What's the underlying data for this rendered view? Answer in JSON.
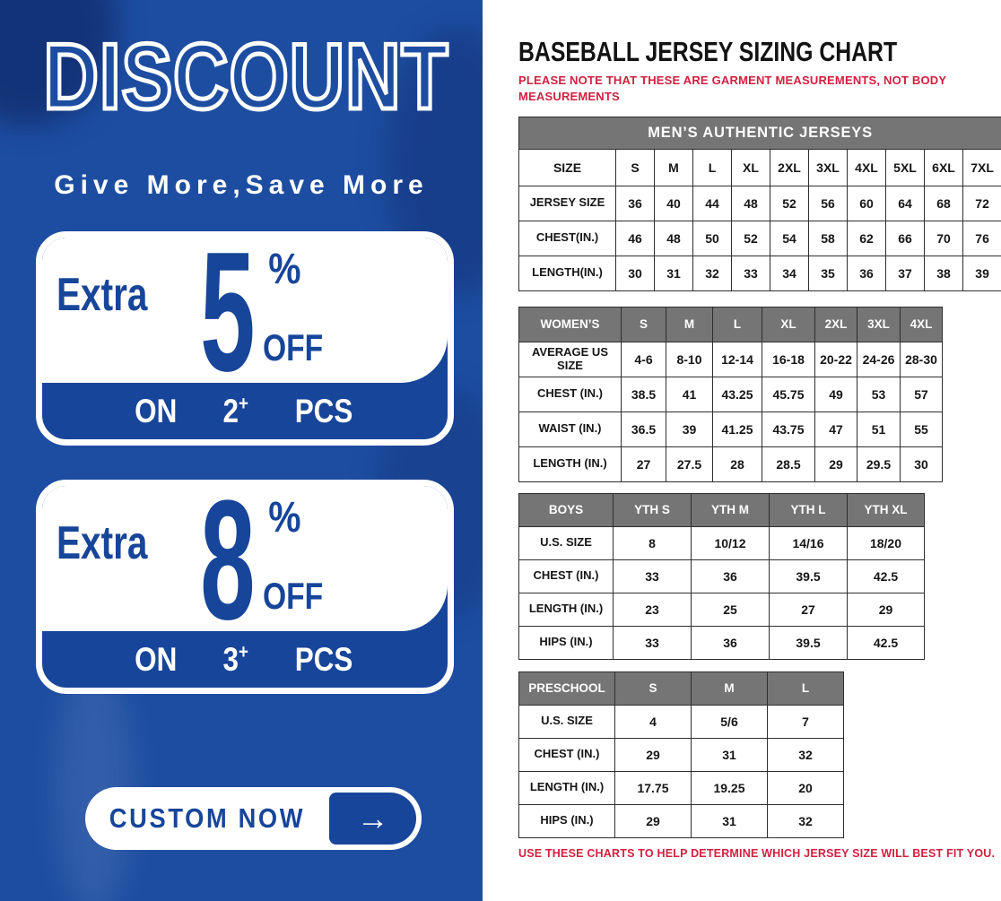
{
  "left_panel": {
    "title": "DISCOUNT",
    "subtitle": "Give More,Save More",
    "offers": [
      {
        "extra": "Extra",
        "amount": "5",
        "percent": "%",
        "off": "OFF",
        "on": "ON",
        "qty": "2",
        "plus": "+",
        "pcs": "PCS"
      },
      {
        "extra": "Extra",
        "amount": "8",
        "percent": "%",
        "off": "OFF",
        "on": "ON",
        "qty": "3",
        "plus": "+",
        "pcs": "PCS"
      }
    ],
    "cta": {
      "label": "CUSTOM NOW",
      "arrow": "→"
    }
  },
  "right_panel": {
    "heading": "BASEBALL JERSEY SIZING CHART",
    "note_top": "PLEASE NOTE THAT THESE ARE GARMENT MEASUREMENTS, NOT BODY MEASUREMENTS",
    "note_bottom": "USE THESE CHARTS TO HELP DETERMINE WHICH JERSEY SIZE WILL BEST FIT YOU.",
    "tables": [
      {
        "banner": "MEN’S AUTHENTIC JERSEYS",
        "headers": [
          "SIZE",
          "S",
          "M",
          "L",
          "XL",
          "2XL",
          "3XL",
          "4XL",
          "5XL",
          "6XL",
          "7XL"
        ],
        "rows": [
          [
            "JERSEY SIZE",
            "36",
            "40",
            "44",
            "48",
            "52",
            "56",
            "60",
            "64",
            "68",
            "72"
          ],
          [
            "CHEST(IN.)",
            "46",
            "48",
            "50",
            "52",
            "54",
            "58",
            "62",
            "66",
            "70",
            "76"
          ],
          [
            "LENGTH(IN.)",
            "30",
            "31",
            "32",
            "33",
            "34",
            "35",
            "36",
            "37",
            "38",
            "39"
          ]
        ]
      },
      {
        "headers": [
          "WOMEN’S",
          "S",
          "M",
          "L",
          "XL",
          "2XL",
          "3XL",
          "4XL"
        ],
        "rows": [
          [
            "AVERAGE US SIZE",
            "4-6",
            "8-10",
            "12-14",
            "16-18",
            "20-22",
            "24-26",
            "28-30"
          ],
          [
            "CHEST (IN.)",
            "38.5",
            "41",
            "43.25",
            "45.75",
            "49",
            "53",
            "57"
          ],
          [
            "WAIST (IN.)",
            "36.5",
            "39",
            "41.25",
            "43.75",
            "47",
            "51",
            "55"
          ],
          [
            "LENGTH (IN.)",
            "27",
            "27.5",
            "28",
            "28.5",
            "29",
            "29.5",
            "30"
          ]
        ]
      },
      {
        "headers": [
          "BOYS",
          "YTH S",
          "YTH M",
          "YTH L",
          "YTH XL"
        ],
        "rows": [
          [
            "U.S. SIZE",
            "8",
            "10/12",
            "14/16",
            "18/20"
          ],
          [
            "CHEST (IN.)",
            "33",
            "36",
            "39.5",
            "42.5"
          ],
          [
            "LENGTH (IN.)",
            "23",
            "25",
            "27",
            "29"
          ],
          [
            "HIPS (IN.)",
            "33",
            "36",
            "39.5",
            "42.5"
          ]
        ]
      },
      {
        "headers": [
          "PRESCHOOL",
          "S",
          "M",
          "L"
        ],
        "rows": [
          [
            "U.S. SIZE",
            "4",
            "5/6",
            "7"
          ],
          [
            "CHEST (IN.)",
            "29",
            "31",
            "32"
          ],
          [
            "LENGTH (IN.)",
            "17.75",
            "19.25",
            "20"
          ],
          [
            "HIPS (IN.)",
            "29",
            "31",
            "32"
          ]
        ]
      }
    ]
  },
  "colors": {
    "brand_blue": "#1d4da1",
    "table_header_gray": "#757575",
    "alert_red": "#d2203f"
  }
}
